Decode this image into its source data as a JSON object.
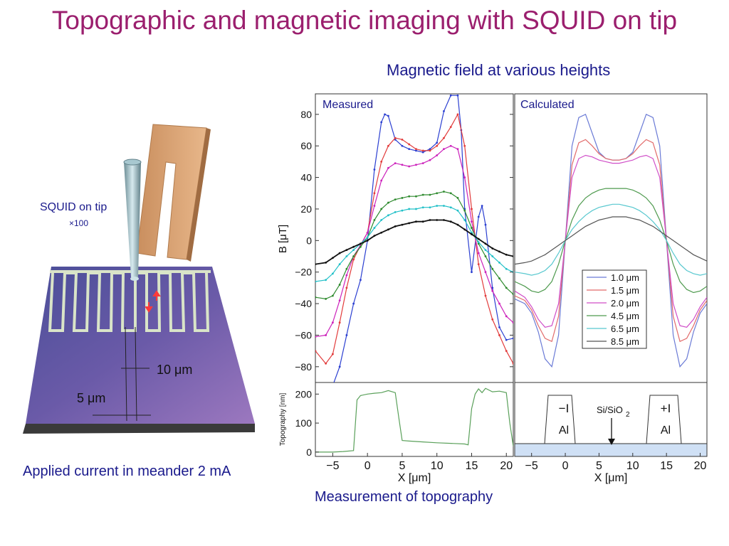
{
  "slide": {
    "title": "Topographic and magnetic imaging with SQUID on tip",
    "subtitle": "Magnetic field at various heights",
    "squid_label": "SQUID on tip",
    "squid_mult": "×100",
    "applied_current": "Applied current in meander 2 mA",
    "topography_caption": "Measurement of topography",
    "dim_10": "10 μm",
    "dim_5": "5 μm",
    "colors": {
      "title": "#9b1f6e",
      "caption": "#1a1a8c"
    }
  },
  "chart_data": [
    {
      "type": "line",
      "title": "Measured",
      "xlabel": "",
      "ylabel": "B [μT]",
      "xlim": [
        -7.5,
        21
      ],
      "ylim": [
        -90,
        93
      ],
      "yticks": [
        -80,
        -60,
        -40,
        -20,
        0,
        20,
        40,
        60,
        80
      ],
      "series": [
        {
          "name": "1.0 μm",
          "color": "#2b3fd1",
          "x": [
            -5,
            -4,
            -3,
            -2,
            -1,
            0,
            1,
            2,
            2.5,
            3,
            4,
            5,
            6,
            7,
            8,
            9,
            10,
            11,
            12,
            13,
            13.5,
            14,
            15,
            16,
            16.5,
            17,
            18,
            19,
            20,
            21
          ],
          "y": [
            -92,
            -80,
            -60,
            -40,
            -25,
            0,
            45,
            75,
            80,
            79,
            64,
            60,
            58,
            57,
            56,
            58,
            62,
            82,
            92,
            92,
            70,
            20,
            -20,
            15,
            22,
            10,
            -30,
            -55,
            -63,
            -62
          ]
        },
        {
          "name": "1.5 μm",
          "color": "#e23b3b",
          "x": [
            -7.5,
            -6,
            -5,
            -4,
            -3,
            -2,
            -1,
            0,
            1,
            2,
            3,
            4,
            5,
            6,
            7,
            8,
            9,
            10,
            11,
            12,
            13,
            14,
            15,
            16,
            17,
            18,
            19,
            20,
            21
          ],
          "y": [
            -70,
            -78,
            -72,
            -52,
            -30,
            -12,
            -3,
            5,
            30,
            50,
            60,
            65,
            64,
            61,
            58,
            57,
            57,
            60,
            65,
            72,
            80,
            60,
            20,
            -15,
            -35,
            -50,
            -60,
            -70,
            -78
          ]
        },
        {
          "name": "2.0 μm",
          "color": "#cc22bb",
          "x": [
            -7.5,
            -6,
            -5,
            -4,
            -3,
            -2,
            -1,
            0,
            1,
            2,
            3,
            4,
            5,
            6,
            7,
            8,
            9,
            10,
            11,
            12,
            13,
            14,
            15,
            16,
            17,
            18,
            19,
            20,
            21
          ],
          "y": [
            -61,
            -60,
            -52,
            -38,
            -22,
            -10,
            -3,
            5,
            22,
            38,
            46,
            49,
            48,
            47,
            48,
            49,
            51,
            54,
            58,
            60,
            58,
            40,
            12,
            -8,
            -20,
            -32,
            -40,
            -48,
            -52
          ]
        },
        {
          "name": "4.5 μm",
          "color": "#2e8a2e",
          "x": [
            -7.5,
            -6,
            -5,
            -4,
            -3,
            -2,
            -1,
            0,
            1,
            2,
            3,
            4,
            5,
            6,
            7,
            8,
            9,
            10,
            11,
            12,
            13,
            14,
            15,
            16,
            17,
            18,
            19,
            20,
            21
          ],
          "y": [
            -36,
            -37,
            -35,
            -28,
            -18,
            -10,
            -4,
            2,
            13,
            20,
            24,
            26,
            27,
            28,
            28,
            29,
            29,
            30,
            31,
            30,
            27,
            19,
            8,
            -2,
            -10,
            -18,
            -24,
            -30,
            -34
          ]
        },
        {
          "name": "6.5 μm",
          "color": "#22c0c8",
          "x": [
            -7.5,
            -6,
            -5,
            -4,
            -3,
            -2,
            -1,
            0,
            1,
            2,
            3,
            4,
            5,
            6,
            7,
            8,
            9,
            10,
            11,
            12,
            13,
            14,
            15,
            16,
            17,
            18,
            19,
            20,
            21
          ],
          "y": [
            -26,
            -25,
            -21,
            -15,
            -10,
            -6,
            -2,
            2,
            8,
            13,
            16,
            18,
            19,
            20,
            20,
            21,
            21,
            22,
            22,
            21,
            19,
            13,
            5,
            -1,
            -6,
            -10,
            -14,
            -18,
            -20
          ]
        },
        {
          "name": "8.5 μm",
          "color": "#111111",
          "x": [
            -7.5,
            -6,
            -5,
            -4,
            -3,
            -2,
            -1,
            0,
            1,
            2,
            3,
            4,
            5,
            6,
            7,
            8,
            9,
            10,
            11,
            12,
            13,
            14,
            15,
            16,
            17,
            18,
            19,
            20,
            21
          ],
          "y": [
            -15,
            -14,
            -11,
            -8,
            -6,
            -4,
            -2,
            0,
            3,
            5,
            7,
            9,
            10,
            11,
            12,
            12,
            13,
            13,
            13,
            12,
            10,
            7,
            4,
            1,
            -2,
            -5,
            -7,
            -9,
            -10
          ]
        }
      ]
    },
    {
      "type": "line",
      "title": "Calculated",
      "xlim": [
        -7.5,
        21
      ],
      "ylim": [
        -90,
        93
      ],
      "legend": "center-right",
      "series": [
        {
          "name": "1.0 μm",
          "color": "#6b7bd6",
          "x": [
            -7.5,
            -6,
            -5,
            -4,
            -3,
            -2,
            -1,
            0,
            1,
            2,
            3,
            4,
            5,
            6,
            7,
            8,
            9,
            10,
            11,
            12,
            13,
            14,
            15,
            16,
            17,
            18,
            19,
            20,
            21
          ],
          "y": [
            -37,
            -40,
            -46,
            -58,
            -75,
            -80,
            -60,
            0,
            60,
            78,
            80,
            68,
            56,
            52,
            51,
            51,
            52,
            56,
            68,
            80,
            78,
            60,
            0,
            -60,
            -80,
            -75,
            -58,
            -46,
            -40
          ]
        },
        {
          "name": "1.5 μm",
          "color": "#e26b6b",
          "x": [
            -7.5,
            -6,
            -5,
            -4,
            -3,
            -2,
            -1,
            0,
            1,
            2,
            3,
            4,
            5,
            6,
            7,
            8,
            9,
            10,
            11,
            12,
            13,
            14,
            15,
            16,
            17,
            18,
            19,
            20,
            21
          ],
          "y": [
            -35,
            -38,
            -44,
            -54,
            -62,
            -64,
            -48,
            0,
            48,
            62,
            64,
            60,
            55,
            52,
            51,
            51,
            52,
            55,
            60,
            64,
            62,
            48,
            0,
            -48,
            -64,
            -62,
            -54,
            -44,
            -38
          ]
        },
        {
          "name": "2.0 μm",
          "color": "#d04ec8",
          "x": [
            -7.5,
            -6,
            -5,
            -4,
            -3,
            -2,
            -1,
            0,
            1,
            2,
            3,
            4,
            5,
            6,
            7,
            8,
            9,
            10,
            11,
            12,
            13,
            14,
            15,
            16,
            17,
            18,
            19,
            20,
            21
          ],
          "y": [
            -32,
            -36,
            -42,
            -50,
            -55,
            -54,
            -40,
            0,
            40,
            52,
            54,
            53,
            51,
            50,
            49,
            49,
            50,
            51,
            53,
            54,
            52,
            40,
            0,
            -40,
            -54,
            -55,
            -50,
            -42,
            -36
          ]
        },
        {
          "name": "4.5 μm",
          "color": "#4e9a4e",
          "x": [
            -7.5,
            -6,
            -5,
            -4,
            -3,
            -2,
            -1,
            0,
            1,
            2,
            3,
            4,
            5,
            6,
            7,
            8,
            9,
            10,
            11,
            12,
            13,
            14,
            15,
            16,
            17,
            18,
            19,
            20,
            21
          ],
          "y": [
            -26,
            -29,
            -32,
            -33,
            -31,
            -26,
            -15,
            0,
            13,
            22,
            27,
            30,
            32,
            33,
            33,
            33,
            33,
            32,
            30,
            27,
            22,
            13,
            0,
            -15,
            -26,
            -31,
            -33,
            -32,
            -29
          ]
        },
        {
          "name": "6.5 μm",
          "color": "#58c8cf",
          "x": [
            -7.5,
            -6,
            -5,
            -4,
            -3,
            -2,
            -1,
            0,
            1,
            2,
            3,
            4,
            5,
            6,
            7,
            8,
            9,
            10,
            11,
            12,
            13,
            14,
            15,
            16,
            17,
            18,
            19,
            20,
            21
          ],
          "y": [
            -20,
            -21,
            -22,
            -21,
            -19,
            -15,
            -8,
            0,
            7,
            12,
            16,
            19,
            21,
            22,
            23,
            23,
            22,
            21,
            19,
            16,
            12,
            7,
            0,
            -8,
            -15,
            -19,
            -21,
            -22,
            -21
          ]
        },
        {
          "name": "8.5 μm",
          "color": "#555555",
          "x": [
            -7.5,
            -6,
            -5,
            -4,
            -3,
            -2,
            -1,
            0,
            1,
            2,
            3,
            4,
            5,
            6,
            7,
            8,
            9,
            10,
            11,
            12,
            13,
            14,
            15,
            16,
            17,
            18,
            19,
            20,
            21
          ],
          "y": [
            -15,
            -14,
            -13,
            -11,
            -9,
            -6,
            -3,
            0,
            3,
            6,
            9,
            11,
            13,
            14,
            15,
            15,
            15,
            14,
            13,
            11,
            9,
            6,
            3,
            0,
            -3,
            -6,
            -9,
            -11,
            -13
          ]
        }
      ]
    },
    {
      "type": "line",
      "xlabel": "X [μm]",
      "ylabel": "Topography [nm]",
      "xlim": [
        -7.5,
        21
      ],
      "ylim": [
        -15,
        240
      ],
      "yticks": [
        0,
        100,
        200
      ],
      "xticks": [
        -5,
        0,
        5,
        10,
        15,
        20
      ],
      "series": [
        {
          "name": "",
          "color": "#5aa05a",
          "x": [
            -7.5,
            -5,
            -3.5,
            -2,
            -1.5,
            -1,
            0,
            1,
            2,
            3,
            4,
            4.5,
            5,
            6,
            8,
            10,
            12,
            14,
            14.5,
            15,
            15.5,
            16,
            16.5,
            17,
            18,
            19,
            20,
            20.5,
            21
          ],
          "y": [
            0,
            0,
            2,
            5,
            180,
            195,
            200,
            203,
            205,
            212,
            205,
            120,
            40,
            38,
            35,
            32,
            30,
            28,
            25,
            150,
            200,
            218,
            205,
            220,
            208,
            210,
            205,
            100,
            20
          ]
        }
      ]
    },
    {
      "type": "diagram",
      "xlabel": "X [μm]",
      "xticks": [
        -5,
        0,
        5,
        10,
        15,
        20
      ],
      "labels": {
        "left_current": "−I",
        "left_material": "Al",
        "right_current": "+I",
        "right_material": "Al",
        "substrate": "Si/SiO",
        "substrate_sub": "2"
      }
    }
  ]
}
